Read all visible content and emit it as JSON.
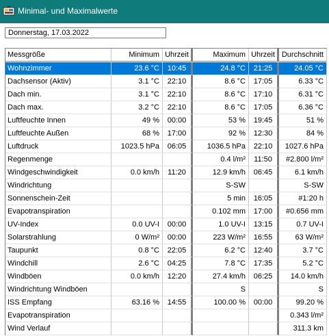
{
  "window": {
    "title": "Minimal- und Maximalwerte",
    "app_icon": "weather-station-icon"
  },
  "date": "Donnerstag, 17.03.2022",
  "columns": [
    "Messgröße",
    "Minimum",
    "Uhrzeit",
    "Maximum",
    "Uhrzeit",
    "Durchschnitt"
  ],
  "selected_row": 0,
  "rows": [
    [
      "Wohnzimmer",
      "23.6 °C",
      "10:45",
      "24.8 °C",
      "21:25",
      "24.05 °C"
    ],
    [
      "Dachsensor (Aktiv)",
      "3.1 °C",
      "22:10",
      "8.6 °C",
      "17:05",
      "6.33 °C"
    ],
    [
      "Dach min.",
      "3.1 °C",
      "22:10",
      "8.6 °C",
      "17:10",
      "6.31 °C"
    ],
    [
      "Dach max.",
      "3.2 °C",
      "22:10",
      "8.6 °C",
      "17:05",
      "6.36 °C"
    ],
    [
      "Luftfeuchte Innen",
      "49 %",
      "00:00",
      "53 %",
      "19:45",
      "51 %"
    ],
    [
      "Luftfeuchte Außen",
      "68 %",
      "17:00",
      "92 %",
      "12:30",
      "84 %"
    ],
    [
      "Luftdruck",
      "1023.5 hPa",
      "06:05",
      "1036.5 hPa",
      "22:10",
      "1027.6 hPa"
    ],
    [
      "Regenmenge",
      "",
      "",
      "0.4 l/m²",
      "11:50",
      "#2.800 l/m²"
    ],
    [
      "Windgeschwindigkeit",
      "0.0 km/h",
      "11:20",
      "12.9 km/h",
      "06:45",
      "6.1 km/h"
    ],
    [
      "Windrichtung",
      "",
      "",
      "S-SW",
      "",
      "S-SW"
    ],
    [
      "Sonnenschein-Zeit",
      "",
      "",
      "5 min",
      "16:05",
      "#1:20 h"
    ],
    [
      "Evapotranspiration",
      "",
      "",
      "0.102 mm",
      "17:00",
      "#0.656 mm"
    ],
    [
      "UV-Index",
      "0.0 UV-I",
      "00:00",
      "1.0 UV-I",
      "13:15",
      "0.7 UV-I"
    ],
    [
      "Solarstrahlung",
      "0 W/m²",
      "00:00",
      "223 W/m²",
      "16:55",
      "63 W/m²"
    ],
    [
      "Taupunkt",
      "0.8 °C",
      "22:05",
      "6.2 °C",
      "12:40",
      "3.7 °C"
    ],
    [
      "Windchill",
      "2.6 °C",
      "04:25",
      "7.8 °C",
      "17:35",
      "5.2 °C"
    ],
    [
      "Windböen",
      "0.0 km/h",
      "12:20",
      "27.4 km/h",
      "06:25",
      "14.0 km/h"
    ],
    [
      "Windrichtung Windböen",
      "",
      "",
      "S",
      "",
      "S"
    ],
    [
      "ISS Empfang",
      "63.16 %",
      "14:55",
      "100.00 %",
      "00:00",
      "99.20 %"
    ],
    [
      "Evapotranspiration",
      "",
      "",
      "",
      "",
      "0.343 l/m²"
    ],
    [
      "Wind Verlauf",
      "",
      "",
      "",
      "",
      "311.3 km"
    ]
  ]
}
